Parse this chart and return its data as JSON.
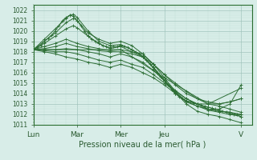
{
  "xlabel": "Pression niveau de la mer( hPa )",
  "ylim": [
    1011,
    1022.5
  ],
  "xlim": [
    0,
    120
  ],
  "yticks": [
    1011,
    1012,
    1013,
    1014,
    1015,
    1016,
    1017,
    1018,
    1019,
    1020,
    1021,
    1022
  ],
  "xtick_positions": [
    0,
    24,
    48,
    72,
    114
  ],
  "xtick_labels": [
    "Lun",
    "Mar",
    "Mer",
    "Jeu",
    "V"
  ],
  "bg_color": "#d8ede8",
  "grid_color": "#a0c4bc",
  "line_color": "#2d6e35",
  "minor_grid_color": "#c4dfd9",
  "lines": [
    [
      0,
      1018.2,
      2,
      1018.4,
      4,
      1018.6,
      6,
      1019.0,
      8,
      1019.3,
      10,
      1019.6,
      12,
      1020.0,
      14,
      1020.5,
      16,
      1021.0,
      18,
      1021.3,
      20,
      1021.5,
      22,
      1021.4,
      24,
      1021.0,
      26,
      1020.5,
      28,
      1020.0,
      30,
      1019.5,
      32,
      1019.2,
      34,
      1019.0,
      36,
      1018.8,
      38,
      1018.6,
      40,
      1018.5,
      42,
      1018.4,
      44,
      1018.5,
      46,
      1018.5,
      48,
      1018.6,
      50,
      1018.5,
      52,
      1018.4,
      54,
      1018.2,
      56,
      1018.0,
      58,
      1017.8,
      60,
      1017.5,
      62,
      1017.2,
      64,
      1016.8,
      66,
      1016.4,
      68,
      1016.0,
      70,
      1015.6,
      72,
      1015.2,
      74,
      1014.8,
      76,
      1014.4,
      78,
      1014.0,
      80,
      1013.7,
      82,
      1013.5,
      84,
      1013.3,
      86,
      1013.2,
      88,
      1013.1,
      90,
      1013.0,
      92,
      1012.9,
      94,
      1012.8,
      96,
      1012.7,
      98,
      1012.6,
      100,
      1012.5,
      102,
      1012.4,
      104,
      1012.3,
      106,
      1012.2,
      108,
      1012.1,
      110,
      1012.0,
      112,
      1012.0,
      114,
      1012.0
    ],
    [
      0,
      1018.2,
      6,
      1019.2,
      12,
      1020.2,
      18,
      1021.2,
      20,
      1021.5,
      22,
      1021.6,
      24,
      1021.3,
      30,
      1020.0,
      36,
      1019.0,
      42,
      1018.6,
      48,
      1018.7,
      54,
      1018.2,
      60,
      1017.6,
      66,
      1016.5,
      72,
      1015.3,
      78,
      1014.1,
      84,
      1013.0,
      90,
      1012.3,
      96,
      1012.0,
      102,
      1011.8,
      108,
      1011.5,
      114,
      1011.2
    ],
    [
      0,
      1018.2,
      6,
      1019.0,
      12,
      1019.8,
      18,
      1020.8,
      22,
      1021.2,
      24,
      1021.0,
      30,
      1019.8,
      36,
      1019.2,
      42,
      1018.8,
      48,
      1019.0,
      54,
      1018.6,
      60,
      1017.8,
      66,
      1016.8,
      72,
      1015.5,
      78,
      1014.2,
      84,
      1013.2,
      90,
      1012.8,
      96,
      1012.5,
      102,
      1012.5,
      108,
      1013.0,
      114,
      1014.8
    ],
    [
      0,
      1018.2,
      6,
      1018.8,
      12,
      1019.5,
      18,
      1020.2,
      22,
      1020.5,
      24,
      1020.3,
      30,
      1019.5,
      36,
      1018.8,
      42,
      1018.3,
      48,
      1018.5,
      54,
      1018.0,
      60,
      1017.5,
      66,
      1016.5,
      72,
      1015.2,
      78,
      1014.0,
      84,
      1013.3,
      90,
      1013.0,
      96,
      1013.0,
      102,
      1013.0,
      108,
      1013.2,
      114,
      1013.5
    ],
    [
      0,
      1018.2,
      6,
      1018.5,
      12,
      1018.8,
      18,
      1019.2,
      24,
      1018.8,
      30,
      1018.5,
      36,
      1018.3,
      42,
      1018.1,
      48,
      1018.2,
      54,
      1018.0,
      60,
      1017.8,
      66,
      1016.8,
      72,
      1015.8,
      78,
      1014.8,
      84,
      1014.0,
      90,
      1013.5,
      96,
      1013.2,
      102,
      1013.0,
      108,
      1013.2,
      114,
      1013.5
    ],
    [
      0,
      1018.2,
      6,
      1018.3,
      12,
      1018.5,
      18,
      1018.8,
      24,
      1018.5,
      30,
      1018.3,
      36,
      1018.1,
      42,
      1018.0,
      48,
      1018.0,
      54,
      1017.8,
      60,
      1017.5,
      66,
      1016.8,
      72,
      1015.8,
      78,
      1015.0,
      84,
      1014.2,
      90,
      1013.5,
      96,
      1013.0,
      102,
      1012.8,
      108,
      1012.5,
      114,
      1012.2
    ],
    [
      0,
      1018.2,
      6,
      1018.2,
      12,
      1018.2,
      18,
      1018.3,
      24,
      1018.2,
      30,
      1018.0,
      36,
      1017.8,
      42,
      1017.5,
      48,
      1017.8,
      54,
      1017.5,
      60,
      1017.0,
      66,
      1016.2,
      72,
      1015.2,
      78,
      1014.3,
      84,
      1013.5,
      90,
      1013.0,
      96,
      1012.5,
      102,
      1012.3,
      108,
      1012.2,
      114,
      1012.0
    ],
    [
      0,
      1018.2,
      6,
      1018.1,
      12,
      1018.0,
      18,
      1018.0,
      24,
      1017.8,
      30,
      1017.5,
      36,
      1017.2,
      42,
      1017.0,
      48,
      1017.2,
      54,
      1016.8,
      60,
      1016.5,
      66,
      1015.8,
      72,
      1015.0,
      78,
      1014.2,
      84,
      1013.5,
      90,
      1013.0,
      96,
      1012.5,
      102,
      1012.3,
      108,
      1012.2,
      114,
      1011.8
    ],
    [
      0,
      1018.2,
      6,
      1018.0,
      12,
      1017.8,
      18,
      1017.5,
      24,
      1017.3,
      30,
      1017.0,
      36,
      1016.8,
      42,
      1016.5,
      48,
      1016.8,
      54,
      1016.5,
      60,
      1016.0,
      66,
      1015.5,
      72,
      1014.8,
      78,
      1014.0,
      84,
      1013.2,
      90,
      1012.8,
      96,
      1012.4,
      102,
      1012.2,
      108,
      1012.0,
      114,
      1011.8
    ],
    [
      0,
      1018.2,
      24,
      1018.2,
      48,
      1018.2,
      72,
      1015.5,
      96,
      1013.0,
      114,
      1014.5
    ]
  ]
}
